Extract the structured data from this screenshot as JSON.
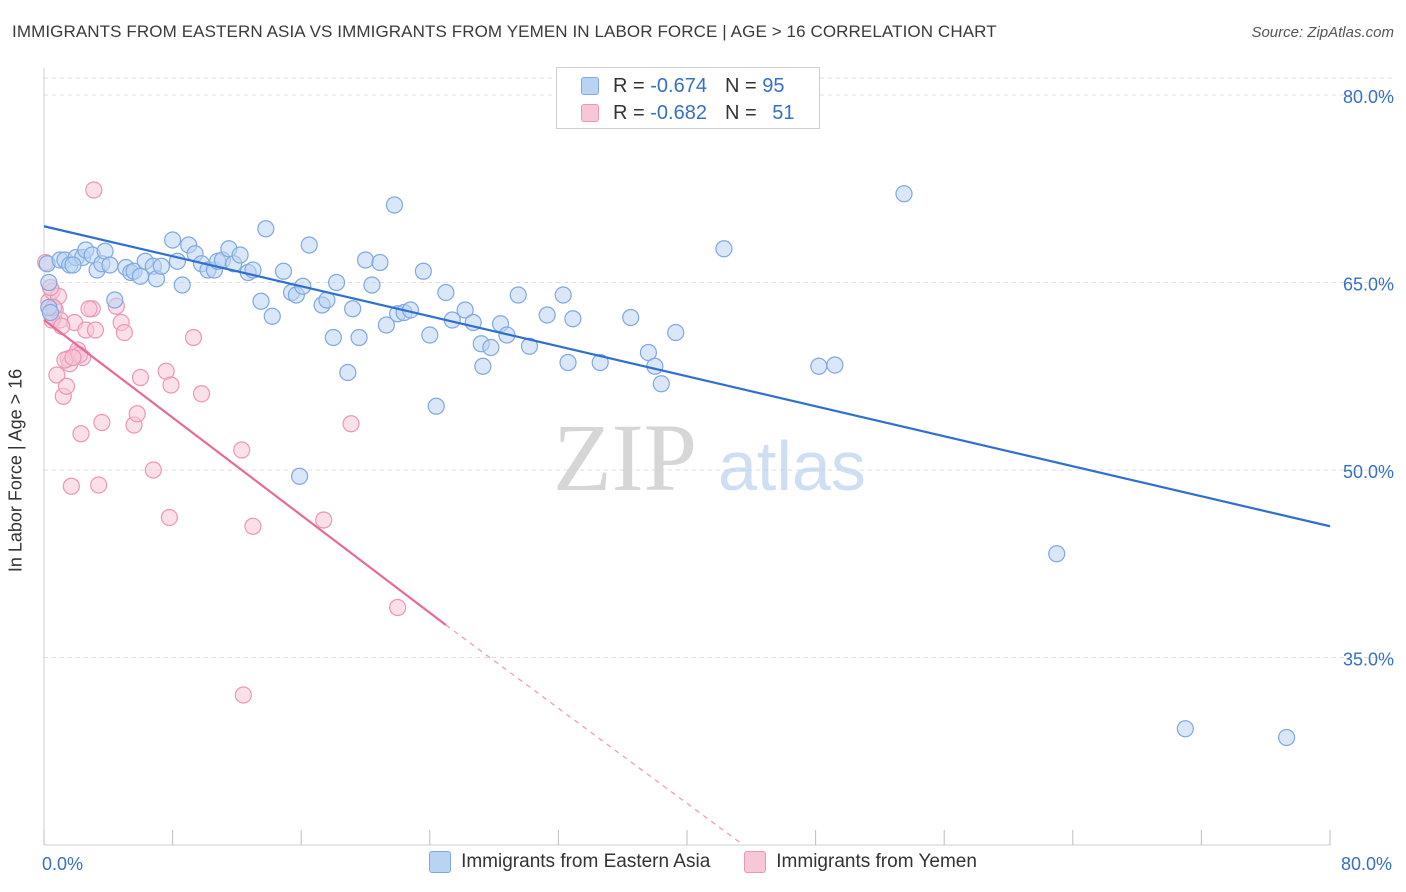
{
  "title": "IMMIGRANTS FROM EASTERN ASIA VS IMMIGRANTS FROM YEMEN IN LABOR FORCE | AGE > 16 CORRELATION CHART",
  "source": "Source: ZipAtlas.com",
  "watermark": {
    "zip": "ZIP",
    "atlas": "atlas"
  },
  "stats": {
    "r_label": "R =",
    "n_label": "N =",
    "blue": {
      "r": "-0.674",
      "n": "95"
    },
    "pink": {
      "r": "-0.682",
      "n": "51"
    }
  },
  "legend": {
    "blue": "Immigrants from Eastern Asia",
    "pink": "Immigrants from Yemen"
  },
  "colors": {
    "blue_fill": "#b9d3f2",
    "blue_stroke": "#7fa9e0",
    "blue_line": "#2f6fd0",
    "pink_fill": "#f8c7d7",
    "pink_stroke": "#eb98b4",
    "pink_line": "#e8699a",
    "axis_label": "#3570c7",
    "grid": "#dcdcdc"
  },
  "chart_data": {
    "type": "scatter",
    "title": "IMMIGRANTS FROM EASTERN ASIA VS IMMIGRANTS FROM YEMEN IN LABOR FORCE | AGE > 16 CORRELATION CHART",
    "xlabel": "",
    "ylabel": "In Labor Force | Age > 16",
    "xlim": [
      0,
      80
    ],
    "ylim": [
      20,
      82
    ],
    "x_tick_labels": [
      "0.0%",
      "80.0%"
    ],
    "y_ticks": [
      35,
      50,
      65,
      80
    ],
    "y_tick_labels": [
      "35.0%",
      "50.0%",
      "65.0%",
      "80.0%"
    ],
    "grid": true,
    "legend_position": "bottom",
    "series": [
      {
        "name": "Immigrants from Eastern Asia",
        "points": [
          [
            0.2,
            66.5
          ],
          [
            0.3,
            65.0
          ],
          [
            0.3,
            63.0
          ],
          [
            1.0,
            66.8
          ],
          [
            1.3,
            66.8
          ],
          [
            1.6,
            66.4
          ],
          [
            2.0,
            67.0
          ],
          [
            2.4,
            67.0
          ],
          [
            2.6,
            67.6
          ],
          [
            3.0,
            67.2
          ],
          [
            3.3,
            66.0
          ],
          [
            3.6,
            66.5
          ],
          [
            3.8,
            67.5
          ],
          [
            4.4,
            63.6
          ],
          [
            5.1,
            66.2
          ],
          [
            5.4,
            65.8
          ],
          [
            5.6,
            65.9
          ],
          [
            6.0,
            65.5
          ],
          [
            6.3,
            66.7
          ],
          [
            6.8,
            66.3
          ],
          [
            7.0,
            65.3
          ],
          [
            7.3,
            66.3
          ],
          [
            8.0,
            68.4
          ],
          [
            8.3,
            66.7
          ],
          [
            8.6,
            64.8
          ],
          [
            9.0,
            68.0
          ],
          [
            9.4,
            67.3
          ],
          [
            9.8,
            66.5
          ],
          [
            10.2,
            66.0
          ],
          [
            10.6,
            66.0
          ],
          [
            10.8,
            66.7
          ],
          [
            11.1,
            66.8
          ],
          [
            11.5,
            67.7
          ],
          [
            11.8,
            66.5
          ],
          [
            12.2,
            67.2
          ],
          [
            12.7,
            65.8
          ],
          [
            13.0,
            66.0
          ],
          [
            13.5,
            63.5
          ],
          [
            13.8,
            69.3
          ],
          [
            14.2,
            62.3
          ],
          [
            14.9,
            65.9
          ],
          [
            15.4,
            64.2
          ],
          [
            15.7,
            64.0
          ],
          [
            16.1,
            64.7
          ],
          [
            16.5,
            68.0
          ],
          [
            17.3,
            63.2
          ],
          [
            17.6,
            63.6
          ],
          [
            18.0,
            60.6
          ],
          [
            18.2,
            65.0
          ],
          [
            18.9,
            57.8
          ],
          [
            19.2,
            62.9
          ],
          [
            19.6,
            60.6
          ],
          [
            20.0,
            66.8
          ],
          [
            20.4,
            64.8
          ],
          [
            20.9,
            66.6
          ],
          [
            21.3,
            61.6
          ],
          [
            21.8,
            71.2
          ],
          [
            22.0,
            62.5
          ],
          [
            22.4,
            62.6
          ],
          [
            22.8,
            62.8
          ],
          [
            23.6,
            65.9
          ],
          [
            24.0,
            60.8
          ],
          [
            24.4,
            55.1
          ],
          [
            25.0,
            64.2
          ],
          [
            25.4,
            62.0
          ],
          [
            26.2,
            62.8
          ],
          [
            26.7,
            61.8
          ],
          [
            27.2,
            60.1
          ],
          [
            27.3,
            58.3
          ],
          [
            27.8,
            59.8
          ],
          [
            28.4,
            61.7
          ],
          [
            28.8,
            60.8
          ],
          [
            29.5,
            64.0
          ],
          [
            30.2,
            59.9
          ],
          [
            31.3,
            62.4
          ],
          [
            32.3,
            64.0
          ],
          [
            32.6,
            58.6
          ],
          [
            32.9,
            62.1
          ],
          [
            34.6,
            58.6
          ],
          [
            36.5,
            62.2
          ],
          [
            37.6,
            59.4
          ],
          [
            38.0,
            58.3
          ],
          [
            38.4,
            56.9
          ],
          [
            39.3,
            61.0
          ],
          [
            42.3,
            67.7
          ],
          [
            48.2,
            58.3
          ],
          [
            49.2,
            58.4
          ],
          [
            53.5,
            72.1
          ],
          [
            15.9,
            49.5
          ],
          [
            63.0,
            43.3
          ],
          [
            71.0,
            29.3
          ],
          [
            77.3,
            28.6
          ],
          [
            0.4,
            62.6
          ],
          [
            1.8,
            66.4
          ],
          [
            4.1,
            66.4
          ]
        ]
      },
      {
        "name": "Immigrants from Yemen",
        "points": [
          [
            0.1,
            66.6
          ],
          [
            0.3,
            63.5
          ],
          [
            0.3,
            63.0
          ],
          [
            0.5,
            64.3
          ],
          [
            0.6,
            62.3
          ],
          [
            0.7,
            62.8
          ],
          [
            0.8,
            57.6
          ],
          [
            1.0,
            62.0
          ],
          [
            1.2,
            55.9
          ],
          [
            1.4,
            56.7
          ],
          [
            1.5,
            58.9
          ],
          [
            1.6,
            58.5
          ],
          [
            1.7,
            48.7
          ],
          [
            1.9,
            61.8
          ],
          [
            2.0,
            59.3
          ],
          [
            2.1,
            59.6
          ],
          [
            2.3,
            52.9
          ],
          [
            2.4,
            59.0
          ],
          [
            2.6,
            61.2
          ],
          [
            3.0,
            62.9
          ],
          [
            3.1,
            72.4
          ],
          [
            3.2,
            61.2
          ],
          [
            3.4,
            48.8
          ],
          [
            3.6,
            53.8
          ],
          [
            4.5,
            63.1
          ],
          [
            4.8,
            61.8
          ],
          [
            5.0,
            61.0
          ],
          [
            5.6,
            53.6
          ],
          [
            5.8,
            54.5
          ],
          [
            6.0,
            57.4
          ],
          [
            6.8,
            50.0
          ],
          [
            7.6,
            57.9
          ],
          [
            7.8,
            46.2
          ],
          [
            7.9,
            56.8
          ],
          [
            9.3,
            60.6
          ],
          [
            9.8,
            56.1
          ],
          [
            12.3,
            51.6
          ],
          [
            13.0,
            45.5
          ],
          [
            12.4,
            32.0
          ],
          [
            17.4,
            46.0
          ],
          [
            19.1,
            53.7
          ],
          [
            22.0,
            39.0
          ],
          [
            1.3,
            58.8
          ],
          [
            2.8,
            62.9
          ],
          [
            0.9,
            63.9
          ],
          [
            0.5,
            62.0
          ],
          [
            1.1,
            61.5
          ],
          [
            2.2,
            59.2
          ],
          [
            0.4,
            64.6
          ],
          [
            1.8,
            59.0
          ],
          [
            0.6,
            63.0
          ]
        ]
      }
    ],
    "trendlines": [
      {
        "series": "Immigrants from Eastern Asia",
        "x": [
          0,
          80
        ],
        "y": [
          69.5,
          45.5
        ]
      },
      {
        "series": "Immigrants from Yemen",
        "x": [
          0,
          25
        ],
        "y": [
          62.0,
          37.6
        ],
        "dashed_extension_to": [
          43.5,
          20.0
        ]
      }
    ]
  }
}
